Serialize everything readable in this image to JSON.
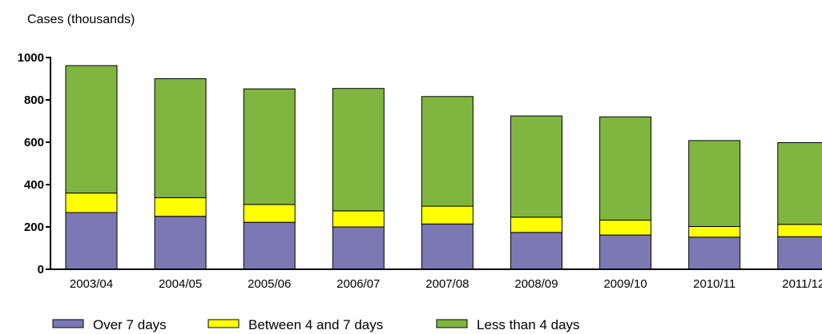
{
  "chart_data": {
    "type": "bar",
    "stacked": true,
    "ylabel": "Cases (thousands)",
    "xlabel": "",
    "ylim": [
      0,
      1000
    ],
    "yticks": [
      0,
      200,
      400,
      600,
      800,
      1000
    ],
    "grid": false,
    "legend_position": "bottom",
    "categories": [
      "2003/04",
      "2004/05",
      "2005/06",
      "2006/07",
      "2007/08",
      "2008/09",
      "2009/10",
      "2010/11",
      "2011/12"
    ],
    "series": [
      {
        "name": "Over 7 days",
        "color": "#7b78b4",
        "values": [
          268,
          250,
          222,
          200,
          214,
          174,
          162,
          152,
          154
        ]
      },
      {
        "name": "Between 4 and 7 days",
        "color": "#ffff00",
        "values": [
          92,
          88,
          84,
          76,
          84,
          72,
          70,
          50,
          58
        ]
      },
      {
        "name": "Less than 4 days",
        "color": "#80b640",
        "values": [
          602,
          562,
          546,
          578,
          518,
          478,
          488,
          406,
          386
        ]
      }
    ]
  }
}
